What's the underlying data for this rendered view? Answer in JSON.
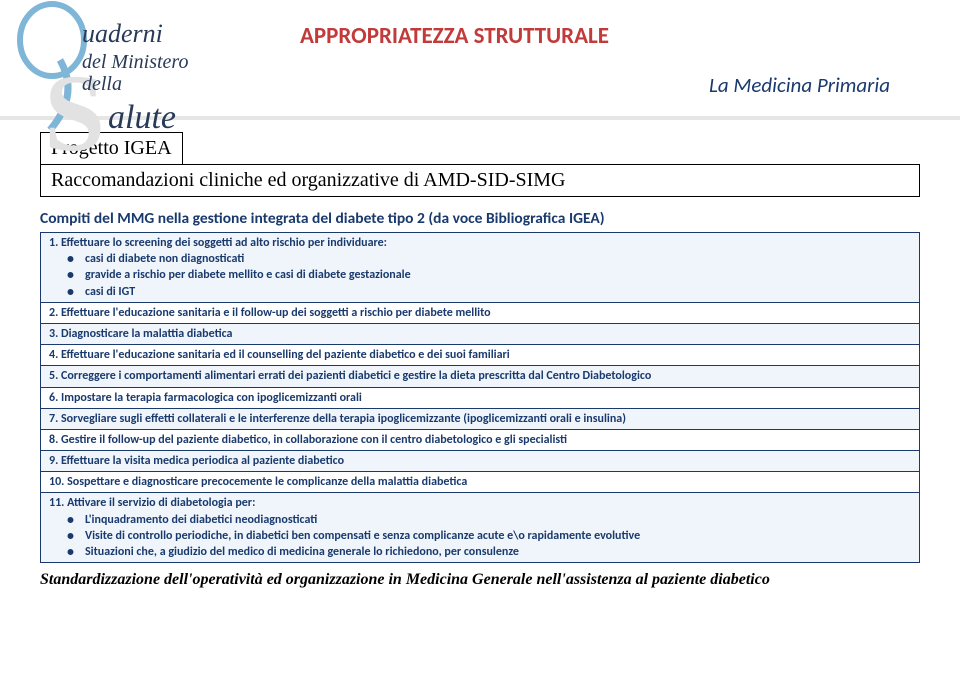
{
  "header": {
    "title_red": "APPROPRIATEZZA STRUTTURALE",
    "subtitle": "La Medicina Primaria"
  },
  "logo": {
    "line1": "uaderni",
    "line2": "del Ministero",
    "line3": "della",
    "big_letter_q": "Q",
    "big_letter_s": "S",
    "word_salute": "alute"
  },
  "boxes": {
    "box1": "Progetto IGEA",
    "box2": "Raccomandazioni cliniche ed organizzative di AMD-SID-SIMG"
  },
  "section_title": "Compiti del MMG nella gestione integrata del diabete tipo 2 (da voce Bibliografica IGEA)",
  "rows": [
    {
      "bg": "light",
      "text": "1. Effettuare lo screening dei soggetti ad alto rischio per individuare:",
      "bullets": [
        "casi di diabete non diagnosticati",
        "gravide a rischio per diabete mellito e casi di diabete gestazionale",
        "casi di IGT"
      ]
    },
    {
      "bg": "white",
      "text": "2. Effettuare l'educazione sanitaria e il follow-up dei soggetti a rischio per diabete mellito"
    },
    {
      "bg": "light",
      "text": "3. Diagnosticare la malattia diabetica"
    },
    {
      "bg": "white",
      "text": "4. Effettuare l'educazione sanitaria ed il counselling del paziente diabetico e dei suoi familiari"
    },
    {
      "bg": "light",
      "text": "5. Correggere i comportamenti alimentari errati dei pazienti diabetici e gestire la dieta prescritta dal Centro Diabetologico"
    },
    {
      "bg": "white",
      "text": "6. Impostare la terapia farmacologica con ipoglicemizzanti orali"
    },
    {
      "bg": "light",
      "text": "7. Sorvegliare sugli effetti collaterali e le interferenze della terapia ipoglicemizzante (ipoglicemizzanti orali e insulina)"
    },
    {
      "bg": "white",
      "text": "8. Gestire il follow-up del paziente diabetico, in collaborazione con il centro diabetologico e gli specialisti"
    },
    {
      "bg": "light",
      "text": "9. Effettuare la visita medica periodica al paziente diabetico"
    },
    {
      "bg": "white",
      "text": "10. Sospettare e diagnosticare precocemente le complicanze della malattia diabetica"
    },
    {
      "bg": "light",
      "text": "11. Attivare il servizio di diabetologia per:",
      "bullets": [
        "L'inquadramento dei diabetici neodiagnosticati",
        "Visite di controllo periodiche, in diabetici ben compensati e senza complicanze acute e\\o rapidamente evolutive",
        "Situazioni che, a giudizio del medico di medicina generale lo richiedono, per consulenze"
      ]
    }
  ],
  "footer": "Standardizzazione dell'operatività ed organizzazione in Medicina Generale nell'assistenza al paziente diabetico",
  "colors": {
    "red": "#c13b3b",
    "blue": "#1a3a6e",
    "light_blue": "#eff5fb",
    "header_border": "#e6e6e6"
  }
}
